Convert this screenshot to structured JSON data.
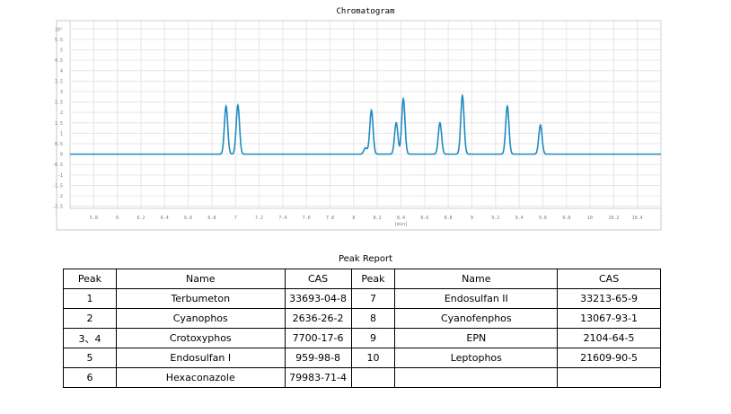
{
  "chart_data": {
    "type": "line",
    "title": "Chromatogram",
    "xlabel": "[min]",
    "ylabel": "",
    "xlim": [
      5.6,
      10.6
    ],
    "ylim": [
      -2.6,
      6.4
    ],
    "x_ticks": [
      "5.8",
      "6",
      "6.2",
      "6.4",
      "6.6",
      "6.8",
      "7",
      "7.2",
      "7.4",
      "7.6",
      "7.8",
      "8",
      "8.2",
      "8.4",
      "8.6",
      "8.8",
      "9",
      "9.2",
      "9.4",
      "9.6",
      "9.8",
      "10",
      "10.2",
      "10.4"
    ],
    "y_ticks": [
      "10⁵",
      "5.5",
      "5",
      "4.5",
      "4",
      "3.5",
      "3",
      "2.5",
      "2",
      "1.5",
      "1",
      "0.5",
      "0",
      "-0.5",
      "-1",
      "-1.5",
      "-2",
      "-2.5"
    ],
    "grid": true,
    "line_color": "#1f8ac0",
    "baseline": 0,
    "peaks": [
      {
        "x": 6.92,
        "height": 2.3
      },
      {
        "x": 7.02,
        "height": 2.35
      },
      {
        "x": 8.1,
        "height": 0.3
      },
      {
        "x": 8.15,
        "height": 2.1
      },
      {
        "x": 8.36,
        "height": 1.5
      },
      {
        "x": 8.42,
        "height": 2.65
      },
      {
        "x": 8.73,
        "height": 1.5
      },
      {
        "x": 8.92,
        "height": 2.8
      },
      {
        "x": 9.3,
        "height": 2.3
      },
      {
        "x": 9.58,
        "height": 1.4
      }
    ]
  },
  "report": {
    "title": "Peak Report",
    "headers": [
      "Peak",
      "Name",
      "CAS",
      "Peak",
      "Name",
      "CAS"
    ],
    "rows": [
      [
        "1",
        "Terbumeton",
        "33693-04-8",
        "7",
        "Endosulfan II",
        "33213-65-9"
      ],
      [
        "2",
        "Cyanophos",
        "2636-26-2",
        "8",
        "Cyanofenphos",
        "13067-93-1"
      ],
      [
        "3、4",
        "Crotoxyphos",
        "7700-17-6",
        "9",
        "EPN",
        "2104-64-5"
      ],
      [
        "5",
        "Endosulfan I",
        "959-98-8",
        "10",
        "Leptophos",
        "21609-90-5"
      ],
      [
        "6",
        "Hexaconazole",
        "79983-71-4",
        "",
        "",
        ""
      ]
    ]
  }
}
